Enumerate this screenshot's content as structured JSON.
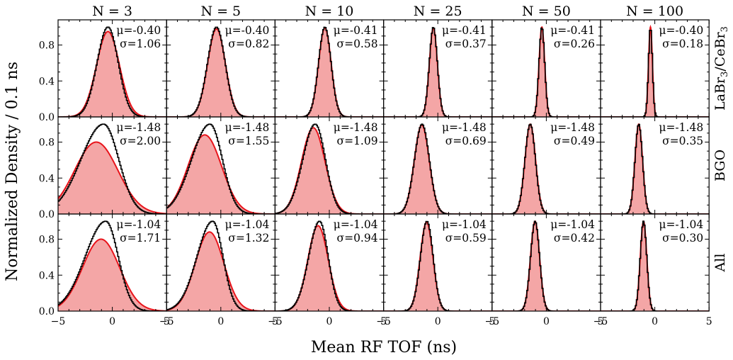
{
  "figure": {
    "xlabel": "Mean RF TOF (ns)",
    "ylabel": "Normalized Density / 0.1 ns"
  },
  "chart_data": {
    "type": "area",
    "columns": [
      "N = 3",
      "N = 5",
      "N = 10",
      "N = 25",
      "N = 50",
      "N = 100"
    ],
    "rows": [
      "LaBr3/CeBr3",
      "BGO",
      "All"
    ],
    "xlim": [
      -5,
      5
    ],
    "ylim": [
      0,
      1.08
    ],
    "xticks": [
      -5,
      0,
      5
    ],
    "yticks": [
      0.0,
      0.4,
      0.8
    ],
    "yticklabels": [
      "0.0",
      "0.4",
      "0.8"
    ],
    "xticklabels": [
      "−5",
      "0",
      "5"
    ],
    "colors": {
      "fit_fill": "#f4a6a6",
      "fit_line": "#e8141b",
      "histogram": "#000000"
    },
    "series_encoding": [
      "Gaussian fit (filled, red outline)",
      "histogram (black step)"
    ],
    "panels": [
      {
        "row": 0,
        "col": 0,
        "mu": -0.4,
        "sigma": 1.06,
        "mu_label": "μ=-0.40",
        "sigma_label": "σ=1.06",
        "fit_peak": 0.95,
        "hist_peak": 1.0,
        "hist_sigma_left": 1.0,
        "hist_sigma_right": 0.95
      },
      {
        "row": 0,
        "col": 1,
        "mu": -0.4,
        "sigma": 0.82,
        "mu_label": "μ=-0.40",
        "sigma_label": "σ=0.82",
        "fit_peak": 0.98,
        "hist_peak": 1.0,
        "hist_sigma_left": 0.82,
        "hist_sigma_right": 0.8
      },
      {
        "row": 0,
        "col": 2,
        "mu": -0.41,
        "sigma": 0.58,
        "mu_label": "μ=-0.41",
        "sigma_label": "σ=0.58",
        "fit_peak": 0.99,
        "hist_peak": 1.0,
        "hist_sigma_left": 0.58,
        "hist_sigma_right": 0.57
      },
      {
        "row": 0,
        "col": 3,
        "mu": -0.41,
        "sigma": 0.37,
        "mu_label": "μ=-0.41",
        "sigma_label": "σ=0.37",
        "fit_peak": 0.99,
        "hist_peak": 1.0,
        "hist_sigma_left": 0.37,
        "hist_sigma_right": 0.37
      },
      {
        "row": 0,
        "col": 4,
        "mu": -0.41,
        "sigma": 0.26,
        "mu_label": "μ=-0.41",
        "sigma_label": "σ=0.26",
        "fit_peak": 1.0,
        "hist_peak": 1.0,
        "hist_sigma_left": 0.26,
        "hist_sigma_right": 0.26
      },
      {
        "row": 0,
        "col": 5,
        "mu": -0.4,
        "sigma": 0.18,
        "mu_label": "μ=-0.40",
        "sigma_label": "σ=0.18",
        "fit_peak": 1.0,
        "hist_peak": 1.0,
        "hist_sigma_left": 0.18,
        "hist_sigma_right": 0.18
      },
      {
        "row": 1,
        "col": 0,
        "mu": -1.48,
        "sigma": 2.0,
        "mu_label": "μ=-1.48",
        "sigma_label": "σ=2.00",
        "fit_peak": 0.8,
        "hist_peak": 1.0,
        "hist_center": -0.8,
        "hist_sigma_left": 2.1,
        "hist_sigma_right": 1.4
      },
      {
        "row": 1,
        "col": 1,
        "mu": -1.48,
        "sigma": 1.55,
        "mu_label": "μ=-1.48",
        "sigma_label": "σ=1.55",
        "fit_peak": 0.88,
        "hist_peak": 1.0,
        "hist_center": -1.0,
        "hist_sigma_left": 1.7,
        "hist_sigma_right": 1.15
      },
      {
        "row": 1,
        "col": 2,
        "mu": -1.48,
        "sigma": 1.09,
        "mu_label": "μ=-1.48",
        "sigma_label": "σ=1.09",
        "fit_peak": 0.96,
        "hist_peak": 1.0,
        "hist_center": -1.3,
        "hist_sigma_left": 1.15,
        "hist_sigma_right": 0.95
      },
      {
        "row": 1,
        "col": 3,
        "mu": -1.48,
        "sigma": 0.69,
        "mu_label": "μ=-1.48",
        "sigma_label": "σ=0.69",
        "fit_peak": 0.99,
        "hist_peak": 1.0,
        "hist_center": -1.45,
        "hist_sigma_left": 0.7,
        "hist_sigma_right": 0.67
      },
      {
        "row": 1,
        "col": 4,
        "mu": -1.48,
        "sigma": 0.49,
        "mu_label": "μ=-1.48",
        "sigma_label": "σ=0.49",
        "fit_peak": 1.0,
        "hist_peak": 1.0,
        "hist_center": -1.48,
        "hist_sigma_left": 0.49,
        "hist_sigma_right": 0.48
      },
      {
        "row": 1,
        "col": 5,
        "mu": -1.48,
        "sigma": 0.35,
        "mu_label": "μ=-1.48",
        "sigma_label": "σ=0.35",
        "fit_peak": 1.0,
        "hist_peak": 1.0,
        "hist_center": -1.48,
        "hist_sigma_left": 0.35,
        "hist_sigma_right": 0.35
      },
      {
        "row": 2,
        "col": 0,
        "mu": -1.04,
        "sigma": 1.71,
        "mu_label": "μ=-1.04",
        "sigma_label": "σ=1.71",
        "fit_peak": 0.8,
        "hist_peak": 1.0,
        "hist_center": -0.6,
        "hist_sigma_left": 1.9,
        "hist_sigma_right": 1.15
      },
      {
        "row": 2,
        "col": 1,
        "mu": -1.04,
        "sigma": 1.32,
        "mu_label": "μ=-1.04",
        "sigma_label": "σ=1.32",
        "fit_peak": 0.88,
        "hist_peak": 1.0,
        "hist_center": -0.75,
        "hist_sigma_left": 1.45,
        "hist_sigma_right": 0.95
      },
      {
        "row": 2,
        "col": 2,
        "mu": -1.04,
        "sigma": 0.94,
        "mu_label": "μ=-1.04",
        "sigma_label": "σ=0.94",
        "fit_peak": 0.95,
        "hist_peak": 1.0,
        "hist_center": -0.9,
        "hist_sigma_left": 1.0,
        "hist_sigma_right": 0.8
      },
      {
        "row": 2,
        "col": 3,
        "mu": -1.04,
        "sigma": 0.59,
        "mu_label": "μ=-1.04",
        "sigma_label": "σ=0.59",
        "fit_peak": 0.99,
        "hist_peak": 1.0,
        "hist_center": -1.0,
        "hist_sigma_left": 0.6,
        "hist_sigma_right": 0.57
      },
      {
        "row": 2,
        "col": 4,
        "mu": -1.04,
        "sigma": 0.42,
        "mu_label": "μ=-1.04",
        "sigma_label": "σ=0.42",
        "fit_peak": 1.0,
        "hist_peak": 1.0,
        "hist_center": -1.03,
        "hist_sigma_left": 0.42,
        "hist_sigma_right": 0.41
      },
      {
        "row": 2,
        "col": 5,
        "mu": -1.04,
        "sigma": 0.3,
        "mu_label": "μ=-1.04",
        "sigma_label": "σ=0.30",
        "fit_peak": 1.0,
        "hist_peak": 1.0,
        "hist_center": -1.04,
        "hist_sigma_left": 0.3,
        "hist_sigma_right": 0.3
      }
    ]
  }
}
